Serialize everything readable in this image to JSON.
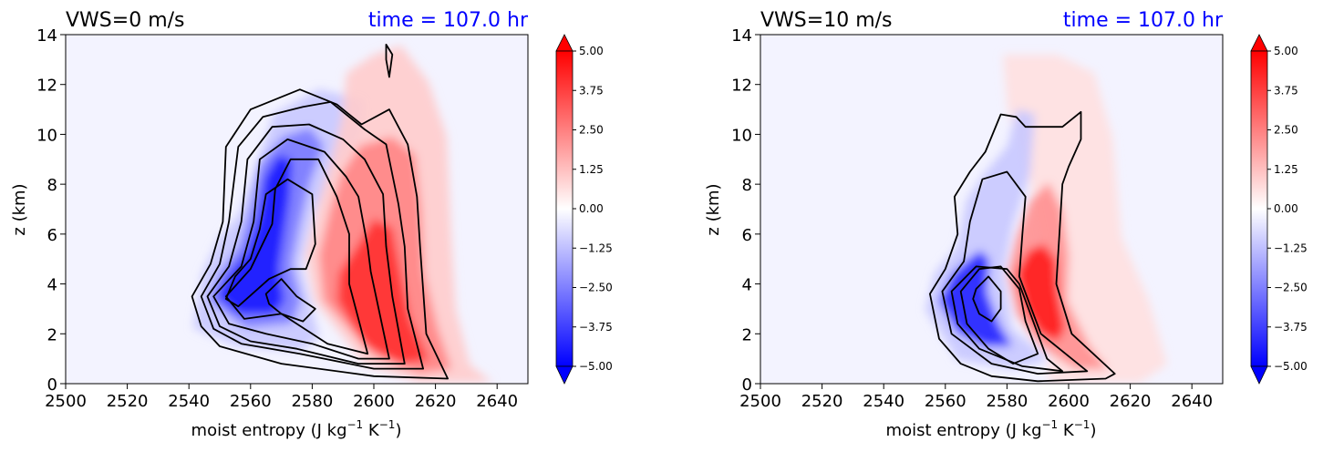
{
  "chart_data": [
    {
      "type": "contour",
      "title": "VWS=0 m/s",
      "time_label": "time = 107.0 hr",
      "title_color": "#0000ff",
      "xlabel": "moist entropy (J kg",
      "xlabel_sup1": "−1",
      "xlabel_mid": " K",
      "xlabel_sup2": "−1",
      "xlabel_end": ")",
      "ylabel": "z (km)",
      "xlim": [
        2500,
        2650
      ],
      "ylim": [
        0,
        14
      ],
      "xticks": [
        "2500",
        "2520",
        "2540",
        "2560",
        "2580",
        "2600",
        "2620",
        "2640"
      ],
      "yticks": [
        "0",
        "2",
        "4",
        "6",
        "8",
        "10",
        "12",
        "14"
      ],
      "colorbar": {
        "range": [
          -5.0,
          5.0
        ],
        "extend": "both",
        "cmap": "bwr",
        "tick_labels": [
          "5.00",
          "3.75",
          "2.50",
          "1.25",
          "0.00",
          "−1.25",
          "−2.50",
          "−3.75",
          "−5.00"
        ],
        "tick_values": [
          5.0,
          3.75,
          2.5,
          1.25,
          0.0,
          -1.25,
          -2.5,
          -3.75,
          -5.0
        ]
      },
      "grid": false,
      "line_contours": [
        [
          [
            2552,
            3.4
          ],
          [
            2555,
            4.3
          ],
          [
            2560,
            5.0
          ],
          [
            2563,
            6.2
          ],
          [
            2565,
            7.6
          ],
          [
            2572,
            8.2
          ],
          [
            2580,
            7.6
          ],
          [
            2581,
            5.6
          ],
          [
            2578,
            4.6
          ],
          [
            2573,
            4.6
          ],
          [
            2566,
            4.2
          ],
          [
            2556,
            3.1
          ],
          [
            2552,
            3.4
          ]
        ],
        [
          [
            2565,
            3.6
          ],
          [
            2570,
            4.2
          ],
          [
            2575,
            3.5
          ],
          [
            2581,
            3.0
          ],
          [
            2577,
            2.5
          ],
          [
            2570,
            2.8
          ],
          [
            2566,
            3.2
          ],
          [
            2565,
            3.6
          ]
        ],
        [
          [
            2552,
            3.5
          ],
          [
            2560,
            4.6
          ],
          [
            2567,
            6.4
          ],
          [
            2568,
            7.8
          ],
          [
            2573,
            9.0
          ],
          [
            2582,
            9.0
          ],
          [
            2588,
            7.5
          ],
          [
            2592,
            6.0
          ],
          [
            2592,
            4.0
          ],
          [
            2598,
            1.2
          ],
          [
            2585,
            1.6
          ],
          [
            2570,
            2.8
          ],
          [
            2558,
            2.6
          ],
          [
            2552,
            3.5
          ]
        ],
        [
          [
            2548,
            3.5
          ],
          [
            2557,
            4.7
          ],
          [
            2561,
            6.5
          ],
          [
            2563,
            9.0
          ],
          [
            2572,
            9.8
          ],
          [
            2584,
            9.3
          ],
          [
            2591,
            8.3
          ],
          [
            2595,
            7.5
          ],
          [
            2598,
            5.5
          ],
          [
            2599,
            4.5
          ],
          [
            2605,
            1.0
          ],
          [
            2595,
            1.0
          ],
          [
            2580,
            1.6
          ],
          [
            2565,
            2.0
          ],
          [
            2553,
            2.4
          ],
          [
            2548,
            3.5
          ]
        ],
        [
          [
            2546,
            3.5
          ],
          [
            2553,
            4.7
          ],
          [
            2557,
            6.5
          ],
          [
            2559,
            9.0
          ],
          [
            2567,
            10.3
          ],
          [
            2579,
            10.4
          ],
          [
            2590,
            9.8
          ],
          [
            2597,
            9.0
          ],
          [
            2603,
            7.6
          ],
          [
            2604,
            5.5
          ],
          [
            2606,
            3.5
          ],
          [
            2610,
            0.8
          ],
          [
            2595,
            0.8
          ],
          [
            2575,
            1.4
          ],
          [
            2560,
            1.7
          ],
          [
            2550,
            2.3
          ],
          [
            2546,
            3.5
          ]
        ],
        [
          [
            2544,
            3.5
          ],
          [
            2550,
            4.8
          ],
          [
            2553,
            6.5
          ],
          [
            2556,
            9.5
          ],
          [
            2564,
            10.7
          ],
          [
            2577,
            11.1
          ],
          [
            2586,
            11.3
          ],
          [
            2597,
            10.2
          ],
          [
            2604,
            9.6
          ],
          [
            2608,
            7.2
          ],
          [
            2610,
            5.5
          ],
          [
            2611,
            3.0
          ],
          [
            2616,
            0.6
          ],
          [
            2600,
            0.6
          ],
          [
            2576,
            1.2
          ],
          [
            2557,
            1.6
          ],
          [
            2548,
            2.2
          ],
          [
            2544,
            3.5
          ]
        ],
        [
          [
            2541,
            3.5
          ],
          [
            2547,
            4.8
          ],
          [
            2551,
            6.5
          ],
          [
            2552,
            9.5
          ],
          [
            2560,
            11.0
          ],
          [
            2576,
            11.8
          ],
          [
            2588,
            11.2
          ],
          [
            2596,
            10.4
          ],
          [
            2605,
            11.0
          ],
          [
            2611,
            9.6
          ],
          [
            2614,
            7.5
          ],
          [
            2615,
            5.5
          ],
          [
            2617,
            2.0
          ],
          [
            2624,
            0.2
          ],
          [
            2600,
            0.3
          ],
          [
            2570,
            0.8
          ],
          [
            2550,
            1.5
          ],
          [
            2544,
            2.3
          ],
          [
            2541,
            3.5
          ]
        ],
        [
          [
            2604,
            13.6
          ],
          [
            2606,
            13.2
          ],
          [
            2605,
            12.3
          ],
          [
            2604,
            13.0
          ],
          [
            2604,
            13.6
          ]
        ]
      ]
    },
    {
      "type": "contour",
      "title": "VWS=10 m/s",
      "time_label": "time = 107.0 hr",
      "title_color": "#0000ff",
      "xlabel": "moist entropy (J kg",
      "xlabel_sup1": "−1",
      "xlabel_mid": " K",
      "xlabel_sup2": "−1",
      "xlabel_end": ")",
      "ylabel": "z (km)",
      "xlim": [
        2500,
        2650
      ],
      "ylim": [
        0,
        14
      ],
      "xticks": [
        "2500",
        "2520",
        "2540",
        "2560",
        "2580",
        "2600",
        "2620",
        "2640"
      ],
      "yticks": [
        "0",
        "2",
        "4",
        "6",
        "8",
        "10",
        "12",
        "14"
      ],
      "colorbar": {
        "range": [
          -5.0,
          5.0
        ],
        "extend": "both",
        "cmap": "bwr",
        "tick_labels": [
          "5.00",
          "3.75",
          "2.50",
          "1.25",
          "0.00",
          "−1.25",
          "−2.50",
          "−3.75",
          "−5.00"
        ],
        "tick_values": [
          5.0,
          3.75,
          2.5,
          1.25,
          0.0,
          -1.25,
          -2.5,
          -3.75,
          -5.0
        ]
      },
      "grid": false,
      "line_contours": [
        [
          [
            2570,
            3.8
          ],
          [
            2574,
            4.3
          ],
          [
            2578,
            3.7
          ],
          [
            2578,
            3.0
          ],
          [
            2575,
            2.5
          ],
          [
            2571,
            2.8
          ],
          [
            2569,
            3.4
          ],
          [
            2570,
            3.8
          ]
        ],
        [
          [
            2565,
            3.7
          ],
          [
            2571,
            4.6
          ],
          [
            2578,
            4.7
          ],
          [
            2584,
            3.8
          ],
          [
            2586,
            2.5
          ],
          [
            2590,
            1.2
          ],
          [
            2582,
            0.8
          ],
          [
            2574,
            1.4
          ],
          [
            2567,
            2.4
          ],
          [
            2565,
            3.7
          ]
        ],
        [
          [
            2562,
            3.7
          ],
          [
            2570,
            4.7
          ],
          [
            2580,
            4.6
          ],
          [
            2584,
            4.0
          ],
          [
            2587,
            3.0
          ],
          [
            2593,
            1.0
          ],
          [
            2598,
            0.5
          ],
          [
            2585,
            0.7
          ],
          [
            2571,
            1.4
          ],
          [
            2564,
            2.4
          ],
          [
            2562,
            3.7
          ]
        ],
        [
          [
            2559,
            3.7
          ],
          [
            2566,
            4.9
          ],
          [
            2568,
            6.5
          ],
          [
            2572,
            8.2
          ],
          [
            2580,
            8.5
          ],
          [
            2586,
            7.5
          ],
          [
            2585,
            6.0
          ],
          [
            2584,
            4.3
          ],
          [
            2591,
            2.0
          ],
          [
            2606,
            0.5
          ],
          [
            2590,
            0.4
          ],
          [
            2575,
            0.8
          ],
          [
            2562,
            2.0
          ],
          [
            2559,
            3.7
          ]
        ],
        [
          [
            2555,
            3.6
          ],
          [
            2560,
            4.6
          ],
          [
            2564,
            6.0
          ],
          [
            2563,
            7.5
          ],
          [
            2568,
            8.5
          ],
          [
            2573,
            9.3
          ],
          [
            2578,
            10.8
          ],
          [
            2583,
            10.7
          ],
          [
            2586,
            10.3
          ],
          [
            2590,
            10.3
          ],
          [
            2598,
            10.3
          ],
          [
            2604,
            10.9
          ],
          [
            2604,
            9.8
          ],
          [
            2600,
            8.7
          ],
          [
            2598,
            8.0
          ],
          [
            2597,
            6.0
          ],
          [
            2596,
            4.0
          ],
          [
            2601,
            2.0
          ],
          [
            2615,
            0.4
          ],
          [
            2612,
            0.2
          ],
          [
            2590,
            0.1
          ],
          [
            2575,
            0.3
          ],
          [
            2565,
            0.8
          ],
          [
            2558,
            1.8
          ],
          [
            2555,
            3.6
          ]
        ]
      ]
    }
  ]
}
